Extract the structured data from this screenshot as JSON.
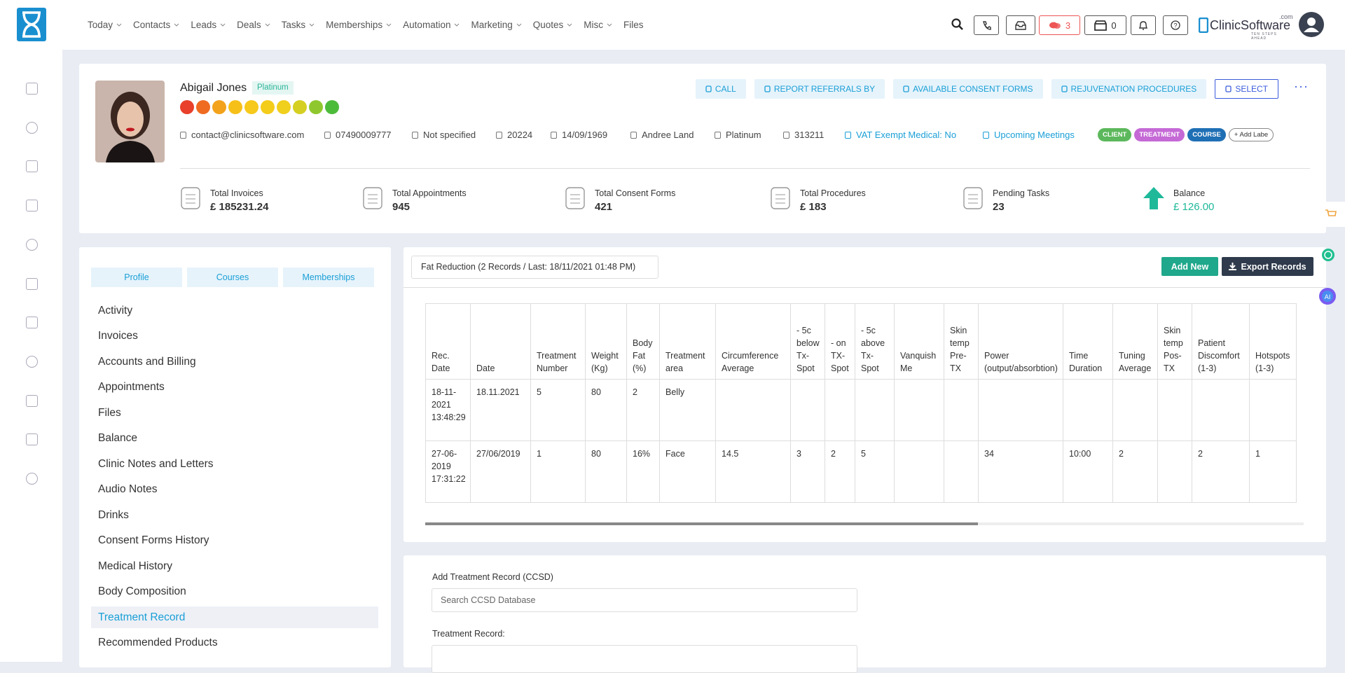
{
  "nav": {
    "items": [
      "Today",
      "Contacts",
      "Leads",
      "Deals",
      "Tasks",
      "Memberships",
      "Automation",
      "Marketing",
      "Quotes",
      "Misc",
      "Files"
    ],
    "messages": "3",
    "store": "0",
    "brand": "ClinicSoftware",
    "brand_suffix": ".com",
    "tagline": "TEN STEPS AHEAD"
  },
  "profile": {
    "name": "Abigail Jones",
    "tier": "Platinum",
    "details": [
      "contact@clinicsoftware.com",
      "07490009777",
      "Not specified",
      "20224",
      "14/09/1969",
      "Andree Land",
      "Platinum",
      "313211"
    ],
    "vat": "VAT Exempt Medical: No",
    "meetings": "Upcoming Meetings",
    "tags": [
      "CLIENT",
      "TREATMENT",
      "COURSE"
    ],
    "add_label": "+ Add Labe"
  },
  "actions": [
    "CALL",
    "REPORT REFERRALS BY",
    "AVAILABLE CONSENT FORMS",
    "REJUVENATION PROCEDURES",
    "SELECT"
  ],
  "stats": [
    {
      "label": "Total Invoices",
      "value": "£ 185231.24"
    },
    {
      "label": "Total Appointments",
      "value": "945"
    },
    {
      "label": "Total Consent Forms",
      "value": "421"
    },
    {
      "label": "Total Procedures",
      "value": "£ 183"
    },
    {
      "label": "Pending Tasks",
      "value": "23"
    },
    {
      "label": "Balance",
      "value": "£ 126.00"
    }
  ],
  "tabs": [
    "Profile",
    "Courses",
    "Memberships"
  ],
  "menu": [
    "Activity",
    "Invoices",
    "Accounts and Billing",
    "Appointments",
    "Files",
    "Balance",
    "Clinic Notes and Letters",
    "Audio Notes",
    "Drinks",
    "Consent Forms History",
    "Medical History",
    "Body Composition",
    "Treatment Record",
    "Recommended Products"
  ],
  "active_menu": "Treatment Record",
  "records": {
    "title": "Fat Reduction (2 Records / Last: 18/11/2021 01:48 PM)",
    "add": "Add New",
    "export": "Export Records",
    "columns": [
      "Rec. Date",
      "Date",
      "Treatment Number",
      "Weight (Kg)",
      "Body Fat (%)",
      "Treatment area",
      "Circumference Average",
      "- 5c below Tx-Spot",
      "- on TX-Spot",
      "- 5c above Tx-Spot",
      "Vanquish Me",
      "Skin temp Pre-TX",
      "Power (output/absorbtion)",
      "Time Duration",
      "Tuning Average",
      "Skin temp Pos-TX",
      "Patient Discomfort (1-3)",
      "Hotspots (1-3)"
    ],
    "rows": [
      [
        "18-11-2021 13:48:29",
        "18.11.2021",
        "5",
        "80",
        "2",
        "Belly",
        null,
        null,
        null,
        null,
        null,
        null,
        null,
        null,
        null,
        null,
        null,
        null
      ],
      [
        "27-06-2019 17:31:22",
        "27/06/2019",
        "1",
        "80",
        "16%",
        "Face",
        "14.5",
        "3",
        "2",
        "5",
        null,
        null,
        "34",
        "10:00",
        "2",
        null,
        "2",
        "1"
      ]
    ]
  },
  "form": {
    "ccsd_label": "Add Treatment Record (CCSD)",
    "ccsd_placeholder": "Search CCSD Database",
    "record_label": "Treatment Record:"
  }
}
